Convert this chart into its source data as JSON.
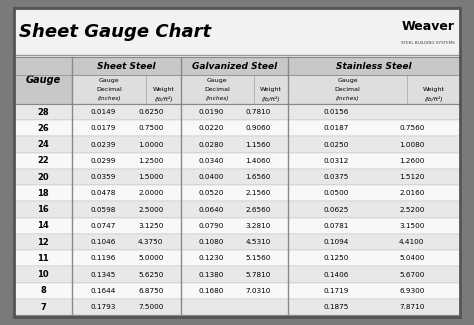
{
  "title": "Sheet Gauge Chart",
  "bg_outer": "#7a7a7a",
  "bg_inner": "#f2f2f2",
  "title_bg": "#f2f2f2",
  "sec_hdr_bg": "#c8c8c8",
  "sub_hdr_bg": "#dedede",
  "row_even": "#e8e8e8",
  "row_odd": "#f8f8f8",
  "border_color": "#555555",
  "divider_color": "#888888",
  "gauge_col": [
    "28",
    "26",
    "24",
    "22",
    "20",
    "18",
    "16",
    "14",
    "12",
    "11",
    "10",
    "8",
    "7"
  ],
  "sheet_steel_decimal": [
    "0.0149",
    "0.0179",
    "0.0239",
    "0.0299",
    "0.0359",
    "0.0478",
    "0.0598",
    "0.0747",
    "0.1046",
    "0.1196",
    "0.1345",
    "0.1644",
    "0.1793"
  ],
  "sheet_steel_weight": [
    "0.6250",
    "0.7500",
    "1.0000",
    "1.2500",
    "1.5000",
    "2.0000",
    "2.5000",
    "3.1250",
    "4.3750",
    "5.0000",
    "5.6250",
    "6.8750",
    "7.5000"
  ],
  "galv_decimal": [
    "0.0190",
    "0.0220",
    "0.0280",
    "0.0340",
    "0.0400",
    "0.0520",
    "0.0640",
    "0.0790",
    "0.1080",
    "0.1230",
    "0.1380",
    "0.1680",
    ""
  ],
  "galv_weight": [
    "0.7810",
    "0.9060",
    "1.1560",
    "1.4060",
    "1.6560",
    "2.1560",
    "2.6560",
    "3.2810",
    "4.5310",
    "5.1560",
    "5.7810",
    "7.0310",
    ""
  ],
  "st_decimal": [
    "0.0156",
    "0.0187",
    "0.0250",
    "0.0312",
    "0.0375",
    "0.0500",
    "0.0625",
    "0.0781",
    "0.1094",
    "0.1250",
    "0.1406",
    "0.1719",
    "0.1875"
  ],
  "st_weight": [
    "",
    "0.7560",
    "1.0080",
    "1.2600",
    "1.5120",
    "2.0160",
    "2.5200",
    "3.1500",
    "4.4100",
    "5.0400",
    "5.6700",
    "6.9300",
    "7.8710"
  ],
  "weaver_text": "Weaver",
  "weaver_sub": "STEEL BUILDING SYSTEMS"
}
